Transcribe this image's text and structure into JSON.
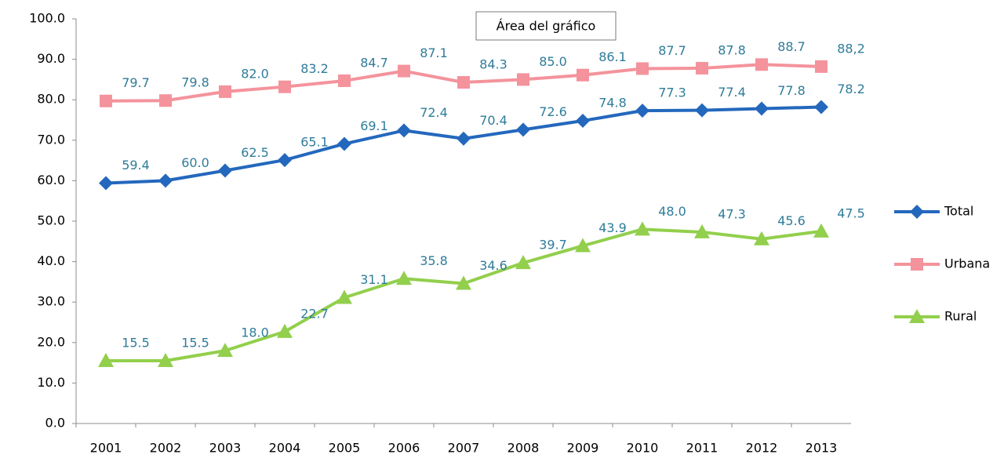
{
  "chart_data": {
    "type": "line",
    "tooltip": "Área del gráfico",
    "categories": [
      "2001",
      "2002",
      "2003",
      "2004",
      "2005",
      "2006",
      "2007",
      "2008",
      "2009",
      "2010",
      "2011",
      "2012",
      "2013"
    ],
    "series": [
      {
        "name": "Total",
        "color": "#2468bd",
        "values": [
          59.4,
          60.0,
          62.5,
          65.1,
          69.1,
          72.4,
          70.4,
          72.6,
          74.8,
          77.3,
          77.4,
          77.8,
          78.2
        ],
        "value_labels": [
          "59.4",
          "60.0",
          "62.5",
          "65.1",
          "69.1",
          "72.4",
          "70.4",
          "72.6",
          "74.8",
          "77.3",
          "77.4",
          "77.8",
          "78.2"
        ]
      },
      {
        "name": "Urbana",
        "color": "#f4939c",
        "values": [
          79.7,
          79.8,
          82.0,
          83.2,
          84.7,
          87.1,
          84.3,
          85.0,
          86.1,
          87.7,
          87.8,
          88.7,
          88.2
        ],
        "value_labels": [
          "79.7",
          "79.8",
          "82.0",
          "83.2",
          "84.7",
          "87.1",
          "84.3",
          "85.0",
          "86.1",
          "87.7",
          "87.8",
          "88.7",
          "88,2"
        ]
      },
      {
        "name": "Rural",
        "color": "#92cf4c",
        "values": [
          15.5,
          15.5,
          18.0,
          22.7,
          31.1,
          35.8,
          34.6,
          39.7,
          43.9,
          48.0,
          47.3,
          45.6,
          47.5
        ],
        "value_labels": [
          "15.5",
          "15.5",
          "18.0",
          "22.7",
          "31.1",
          "35.8",
          "34.6",
          "39.7",
          "43.9",
          "48.0",
          "47.3",
          "45.6",
          "47.5"
        ]
      }
    ],
    "ylim": [
      0,
      100
    ],
    "yticks": [
      {
        "value": 0,
        "label": "0.0"
      },
      {
        "value": 10,
        "label": "10.0"
      },
      {
        "value": 20,
        "label": "20.0"
      },
      {
        "value": 30,
        "label": "30.0"
      },
      {
        "value": 40,
        "label": "40.0"
      },
      {
        "value": 50,
        "label": "50.0"
      },
      {
        "value": 60,
        "label": "60.0"
      },
      {
        "value": 70,
        "label": "70.0"
      },
      {
        "value": 80,
        "label": "80.0"
      },
      {
        "value": 90,
        "label": "90.0"
      },
      {
        "value": 100,
        "label": "100.0"
      }
    ],
    "grid": false,
    "legend": "right"
  }
}
